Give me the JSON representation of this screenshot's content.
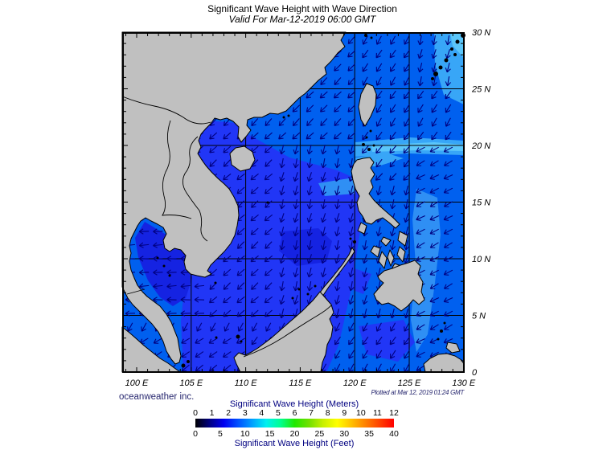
{
  "title": "Significant Wave Height with Wave Direction",
  "subtitle": "Valid For Mar-12-2019 06:00 GMT",
  "credit": "oceanweather inc.",
  "plotted_at": "Plotted at Mar 12, 2019 01:24 GMT",
  "axes": {
    "longitude_labels": [
      "100 E",
      "105 E",
      "110 E",
      "115 E",
      "120 E",
      "125 E",
      "130 E"
    ],
    "latitude_labels": [
      "0",
      "5 N",
      "10 N",
      "15 N",
      "20 N",
      "25 N",
      "30 N"
    ],
    "lon_range": [
      100,
      130
    ],
    "lat_range": [
      0,
      30
    ],
    "grid_interval_degrees": 5
  },
  "legend": {
    "meters_title": "Significant Wave Height (Meters)",
    "feet_title": "Significant Wave Height (Feet)",
    "meters_ticks": [
      0,
      1,
      2,
      3,
      4,
      5,
      6,
      7,
      8,
      9,
      10,
      11,
      12
    ],
    "feet_ticks": [
      0,
      5,
      10,
      15,
      20,
      25,
      30,
      35,
      40
    ]
  },
  "colors": {
    "land": "#c0c0c0",
    "coastline": "#000000",
    "grid": "#000000",
    "ocean_base": "#0060ef",
    "ocean_bright": "#2136f6",
    "ocean_dark": "#1523e2",
    "ocean_mid_light": "#2f8ff4",
    "ocean_light": "#38a6f7",
    "ocean_lighter": "#5bc6fa",
    "arrow": "#000080",
    "colorbar": [
      "#000000",
      "#000080",
      "#0000f0",
      "#0050ff",
      "#00a0ff",
      "#00f0f0",
      "#00ff90",
      "#20e800",
      "#70e000",
      "#c8f000",
      "#ffff00",
      "#ffc000",
      "#ff8000",
      "#ff4000",
      "#ff0000"
    ]
  }
}
